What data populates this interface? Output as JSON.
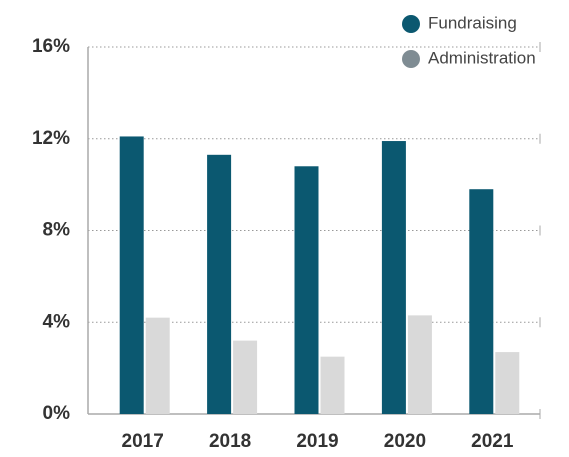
{
  "chart_data": {
    "type": "bar",
    "categories": [
      "2017",
      "2018",
      "2019",
      "2020",
      "2021"
    ],
    "series": [
      {
        "name": "Fundraising",
        "color": "#0b5870",
        "legend_color": "#0b5870",
        "values": [
          12.1,
          11.3,
          10.8,
          11.9,
          9.8
        ]
      },
      {
        "name": "Administration",
        "color": "#d9d9d9",
        "legend_color": "#7f8c93",
        "values": [
          4.2,
          3.2,
          2.5,
          4.3,
          2.7
        ]
      }
    ],
    "ylim": [
      0,
      16
    ],
    "yticks": [
      {
        "value": 0,
        "label": "0%"
      },
      {
        "value": 4,
        "label": "4%"
      },
      {
        "value": 8,
        "label": "8%"
      },
      {
        "value": 12,
        "label": "12%"
      },
      {
        "value": 16,
        "label": "16%"
      }
    ],
    "grid": true,
    "legend": "top-right"
  }
}
